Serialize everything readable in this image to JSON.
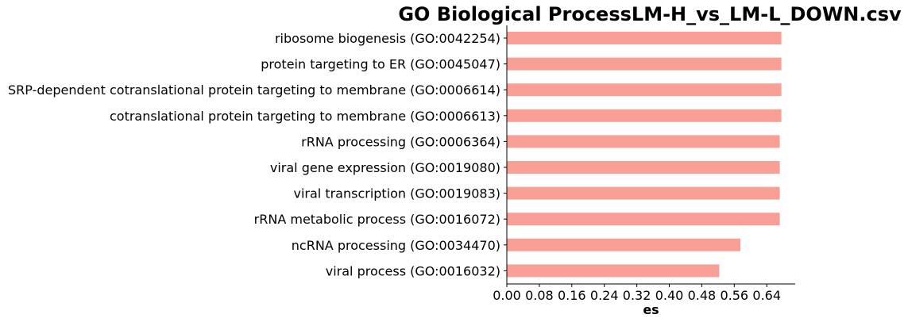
{
  "chart_data": {
    "type": "bar",
    "orientation": "horizontal",
    "title": "GO Biological ProcessLM-H_vs_LM-L_DOWN.csv",
    "xlabel": "es",
    "ylabel": "",
    "xlim": [
      0,
      0.71
    ],
    "xticks": [
      "0.00",
      "0.08",
      "0.16",
      "0.24",
      "0.32",
      "0.40",
      "0.48",
      "0.56",
      "0.64"
    ],
    "categories": [
      "ribosome biogenesis (GO:0042254)",
      "protein targeting to ER (GO:0045047)",
      "SRP-dependent cotranslational protein targeting to membrane (GO:0006614)",
      "cotranslational protein targeting to membrane (GO:0006613)",
      "rRNA processing (GO:0006364)",
      "viral gene expression (GO:0019080)",
      "viral transcription (GO:0019083)",
      "rRNA metabolic process (GO:0016072)",
      "ncRNA processing (GO:0034470)",
      "viral process (GO:0016032)"
    ],
    "values": [
      0.676,
      0.676,
      0.676,
      0.676,
      0.672,
      0.672,
      0.672,
      0.672,
      0.575,
      0.523
    ],
    "bar_color": "#fa9f96",
    "grid": false,
    "legend": false
  }
}
